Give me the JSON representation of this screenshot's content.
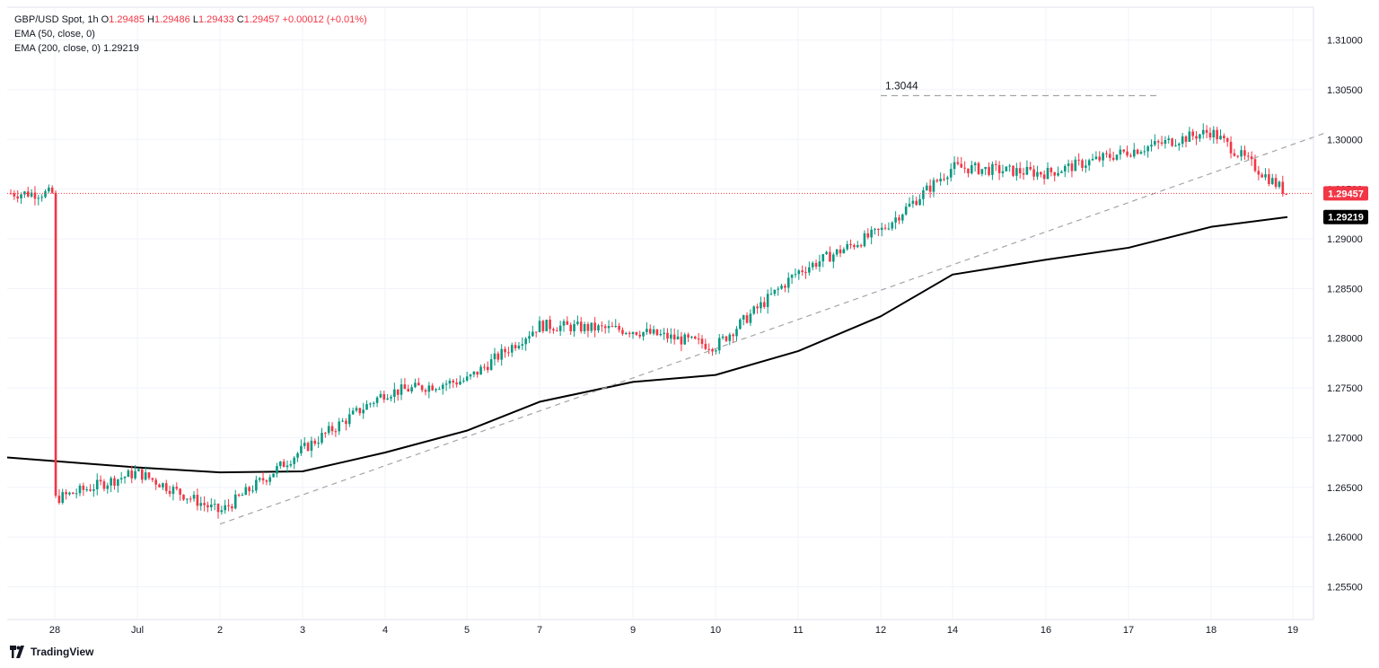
{
  "header": {
    "symbol": "GBP/USD Spot",
    "interval": "1h",
    "o_label": "O",
    "o": "1.29485",
    "h_label": "H",
    "h": "1.29486",
    "l_label": "L",
    "l": "1.29433",
    "c_label": "C",
    "c": "1.29457",
    "change": "+0.00012 (+0.01%)"
  },
  "indicators": [
    {
      "label": "EMA (50, close, 0)",
      "value": ""
    },
    {
      "label": "EMA (200, close, 0)",
      "value": "1.29219"
    }
  ],
  "brand": {
    "name": "TradingView"
  },
  "colors": {
    "up": "#089981",
    "down": "#f23645",
    "ema200": "#000000",
    "trendline": "#a5a5a5",
    "price_line": "#f23645",
    "grid": "#f0f3fa",
    "axis_text": "#131722"
  },
  "chart_data": {
    "type": "candlestick",
    "title": "GBP/USD Spot, 1h",
    "x_tick_labels": [
      "28",
      "Jul",
      "2",
      "3",
      "4",
      "5",
      "7",
      "9",
      "10",
      "11",
      "12",
      "14",
      "16",
      "17",
      "18",
      "19"
    ],
    "y_tick_labels": [
      "1.25500",
      "1.26000",
      "1.26500",
      "1.27000",
      "1.27500",
      "1.28000",
      "1.28500",
      "1.29000",
      "1.29500",
      "1.30000",
      "1.30500",
      "1.31000"
    ],
    "ylim": [
      1.2517,
      1.3133
    ],
    "current_price": 1.29457,
    "current_price_label": "1.29457",
    "ema200_last": 1.29219,
    "ema200_label": "1.29219",
    "annotation": {
      "text": "1.3044",
      "value": 1.3044
    },
    "price_path_anchors": [
      {
        "t": "28",
        "p": 1.2638
      },
      {
        "t": "Jul",
        "p": 1.2665
      },
      {
        "t": "2",
        "p": 1.2625
      },
      {
        "t": "3",
        "p": 1.2688
      },
      {
        "t": "4",
        "p": 1.2745
      },
      {
        "t": "5",
        "p": 1.2758
      },
      {
        "t": "7",
        "p": 1.2813
      },
      {
        "t": "9",
        "p": 1.2808
      },
      {
        "t": "10",
        "p": 1.2792
      },
      {
        "t": "11",
        "p": 1.2867
      },
      {
        "t": "12",
        "p": 1.2908
      },
      {
        "t": "14",
        "p": 1.2972
      },
      {
        "t": "16",
        "p": 1.2966
      },
      {
        "t": "17",
        "p": 1.2988
      },
      {
        "t": "18",
        "p": 1.3008
      },
      {
        "t": "18-end",
        "p": 1.29457
      }
    ],
    "series": [
      {
        "name": "EMA (200, close, 0)",
        "points": [
          {
            "t": "27-end",
            "v": 1.268
          },
          {
            "t": "Jul",
            "v": 1.267
          },
          {
            "t": "2",
            "v": 1.2665
          },
          {
            "t": "3",
            "v": 1.2666
          },
          {
            "t": "4",
            "v": 1.2685
          },
          {
            "t": "5",
            "v": 1.2707
          },
          {
            "t": "7",
            "v": 1.2736
          },
          {
            "t": "9",
            "v": 1.2756
          },
          {
            "t": "10",
            "v": 1.2763
          },
          {
            "t": "11",
            "v": 1.2787
          },
          {
            "t": "12",
            "v": 1.2822
          },
          {
            "t": "14",
            "v": 1.2864
          },
          {
            "t": "16",
            "v": 1.2879
          },
          {
            "t": "17",
            "v": 1.2891
          },
          {
            "t": "18",
            "v": 1.2912
          },
          {
            "t": "18-end",
            "v": 1.29219
          }
        ]
      }
    ],
    "trendline": {
      "from": {
        "t": "2",
        "p": 1.2613
      },
      "to": {
        "t": "18-end",
        "p": 1.2993
      },
      "style": "dashed"
    },
    "resistance_line": {
      "value": 1.3044,
      "from_t": "12",
      "to_t": "17",
      "style": "dashed"
    }
  }
}
